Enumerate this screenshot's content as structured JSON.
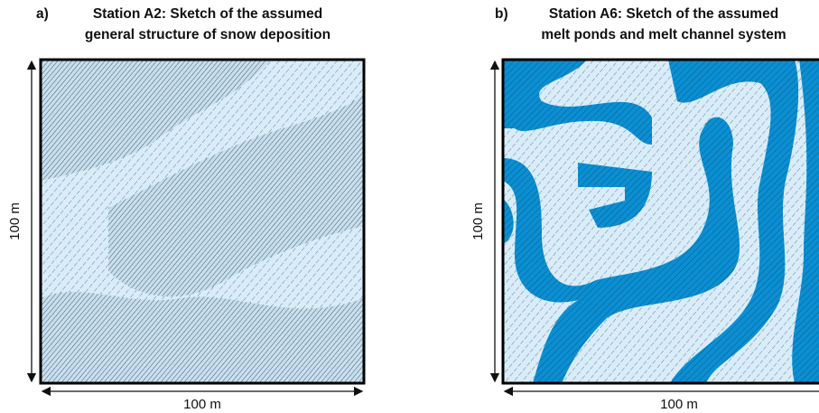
{
  "panels": [
    {
      "label": "a)",
      "title_lines": [
        "Station A2: Sketch of the assumed",
        "general structure of snow deposition"
      ],
      "x_label": "100 m",
      "y_label": "100 m"
    },
    {
      "label": "b)",
      "title_lines": [
        "Station A6: Sketch of the assumed",
        "melt ponds and melt channel system"
      ],
      "x_label": "100 m",
      "y_label": "100 m"
    }
  ]
}
